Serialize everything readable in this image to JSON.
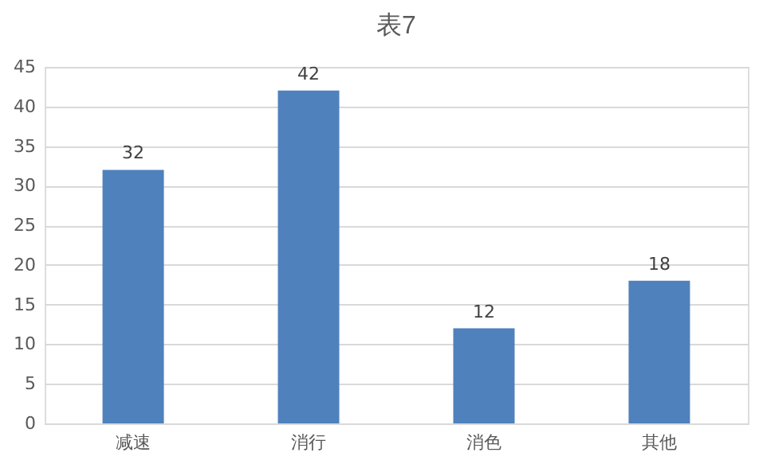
{
  "chart_data": {
    "type": "bar",
    "title": "表7",
    "categories": [
      "减速",
      "消行",
      "消色",
      "其他"
    ],
    "values": [
      32,
      42,
      12,
      18
    ],
    "color": "#4f81bd",
    "ylim": [
      0,
      45
    ],
    "yticks": [
      0,
      5,
      10,
      15,
      20,
      25,
      30,
      35,
      40,
      45
    ],
    "grid": "y",
    "data_labels": true
  }
}
